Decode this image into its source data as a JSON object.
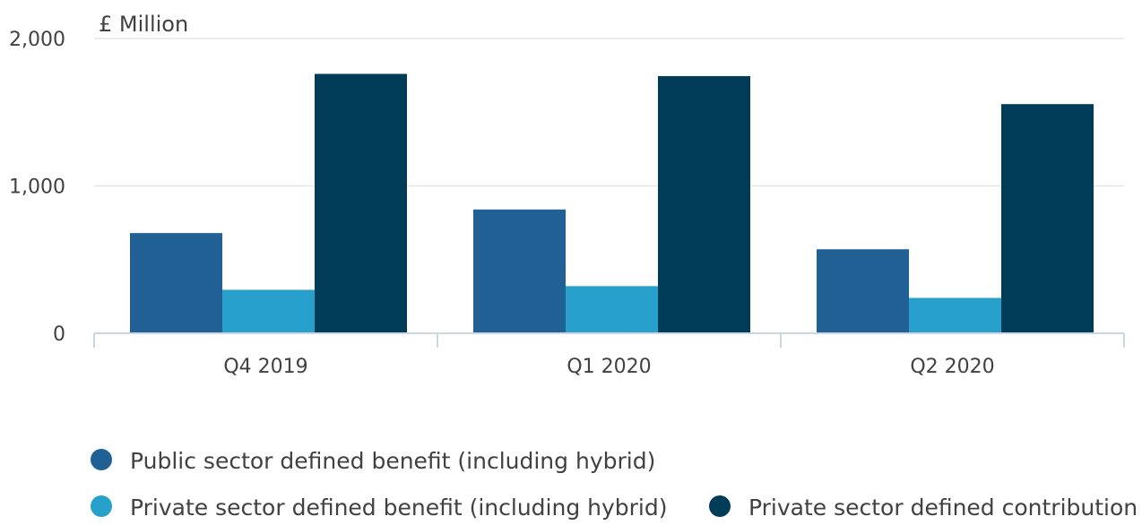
{
  "chart_data": {
    "type": "bar",
    "title": "",
    "xlabel": "",
    "ylabel": "£ Million",
    "ylim": [
      0,
      2000
    ],
    "yticks": [
      0,
      1000,
      2000
    ],
    "ytick_labels": [
      "0",
      "1,000",
      "2,000"
    ],
    "grid": true,
    "legend_position": "bottom",
    "categories": [
      "Q4 2019",
      "Q1 2020",
      "Q2 2020"
    ],
    "series": [
      {
        "name": "Public sector defined benefit (including hybrid)",
        "color": "#206095",
        "values": [
          680,
          840,
          570
        ]
      },
      {
        "name": "Private sector defined benefit (including hybrid)",
        "color": "#27a0cc",
        "values": [
          295,
          320,
          240
        ]
      },
      {
        "name": "Private sector defined contribution",
        "color": "#003c57",
        "values": [
          1760,
          1745,
          1555
        ]
      }
    ]
  }
}
